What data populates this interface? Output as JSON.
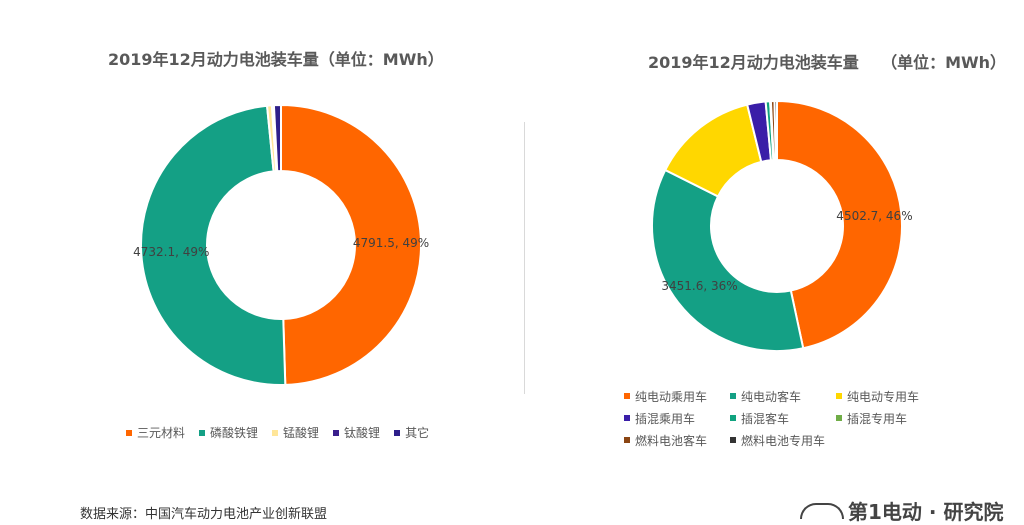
{
  "chart_data": [
    {
      "type": "pie",
      "title": "2019年12月动力电池装车量（单位：MWh）",
      "categories": [
        "三元材料",
        "磷酸铁锂",
        "锰酸锂",
        "钛酸锂",
        "其它"
      ],
      "values": [
        4791.5,
        4732.1,
        54,
        22,
        78
      ],
      "colors": [
        "#FF6600",
        "#14A085",
        "#FFE699",
        "#3A1E8C",
        "#2E1F8A"
      ],
      "data_labels": [
        "4791.5, 49%",
        "4732.1, 49%",
        "",
        "",
        ""
      ],
      "legend": "bottom"
    },
    {
      "type": "pie",
      "title": "2019年12月动力电池装车量    （单位：MWh）",
      "categories": [
        "纯电动乘用车",
        "纯电动客车",
        "纯电动专用车",
        "插混乘用车",
        "插混客车",
        "插混专用车",
        "燃料电池客车",
        "燃料电池专用车"
      ],
      "values": [
        4502.7,
        3451.6,
        1330,
        230,
        55,
        10,
        45,
        30
      ],
      "colors": [
        "#FF6600",
        "#14A085",
        "#FFD700",
        "#3A1EA8",
        "#10A37F",
        "#70AD47",
        "#8B4513",
        "#333333"
      ],
      "data_labels": [
        "4502.7, 46%",
        "3451.6, 36%",
        "",
        "",
        "",
        "",
        "",
        ""
      ],
      "legend": "bottom"
    }
  ],
  "source_text": "数据来源：中国汽车动力电池产业创新联盟",
  "logo_text": "第1电动 · 研究院"
}
